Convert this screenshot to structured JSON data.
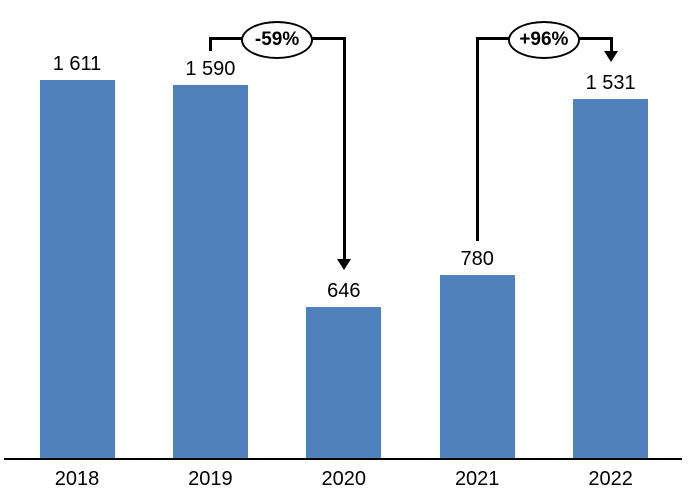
{
  "background_color": "#FFFFFF",
  "chart_data": {
    "type": "bar",
    "title": "",
    "xlabel": "",
    "ylabel": "",
    "categories": [
      "2018",
      "2019",
      "2020",
      "2021",
      "2022"
    ],
    "values": [
      1611,
      1590,
      646,
      780,
      1531
    ],
    "value_labels": [
      "1 611",
      "1 590",
      "646",
      "780",
      "1 531"
    ],
    "ylim": [
      0,
      1950
    ],
    "grid": false,
    "legend": null,
    "bar_color": "#4F81BD",
    "axis_color": "#000000",
    "text_color": "#000000",
    "annotations": [
      {
        "label": "-59%",
        "from": "2019",
        "to": "2020"
      },
      {
        "label": "+96%",
        "from": "2021",
        "to": "2022"
      }
    ]
  }
}
